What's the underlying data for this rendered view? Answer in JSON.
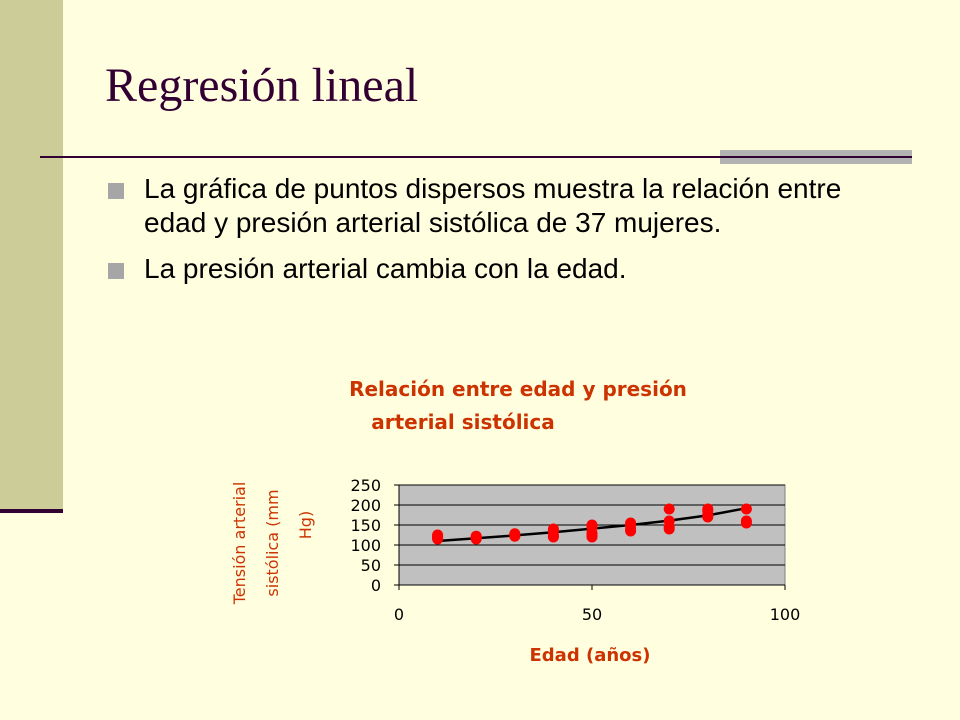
{
  "slide": {
    "title": "Regresión lineal",
    "bullets": [
      "La gráfica de puntos dispersos muestra la relación entre edad y presión arterial sistólica de 37 mujeres.",
      "La presión arterial cambia con la edad."
    ]
  },
  "colors": {
    "background": "#FFFFE0",
    "sidebar": "#CCCC99",
    "title": "#330033",
    "accent_gray": "#B2B2B2",
    "chart_text": "#CC3300",
    "points": "#FF0000",
    "plot_area": "#C0C0C0"
  },
  "chart_data": {
    "type": "scatter",
    "title": "Relación entre edad y presión arterial sistólica",
    "title_lines": [
      "Relación entre edad y presión",
      "arterial sistólica"
    ],
    "xlabel": "Edad (años)",
    "ylabel_lines": [
      "Tensión arterial",
      "sistólica (mm",
      "Hg)"
    ],
    "xlim": [
      0,
      100
    ],
    "ylim": [
      0,
      250
    ],
    "x_ticks": [
      0,
      50,
      100
    ],
    "y_ticks": [
      0,
      50,
      100,
      150,
      200,
      250
    ],
    "grid": true,
    "points": [
      [
        10,
        120
      ],
      [
        10,
        115
      ],
      [
        10,
        122
      ],
      [
        10,
        118
      ],
      [
        10,
        125
      ],
      [
        20,
        115
      ],
      [
        20,
        120
      ],
      [
        20,
        118
      ],
      [
        20,
        122
      ],
      [
        30,
        125
      ],
      [
        30,
        122
      ],
      [
        30,
        128
      ],
      [
        40,
        120
      ],
      [
        40,
        125
      ],
      [
        40,
        140
      ],
      [
        40,
        135
      ],
      [
        40,
        122
      ],
      [
        50,
        120
      ],
      [
        50,
        130
      ],
      [
        50,
        150
      ],
      [
        50,
        145
      ],
      [
        50,
        125
      ],
      [
        60,
        135
      ],
      [
        60,
        140
      ],
      [
        60,
        155
      ],
      [
        60,
        150
      ],
      [
        70,
        140
      ],
      [
        70,
        145
      ],
      [
        70,
        190
      ],
      [
        70,
        160
      ],
      [
        80,
        170
      ],
      [
        80,
        175
      ],
      [
        80,
        185
      ],
      [
        80,
        190
      ],
      [
        90,
        155
      ],
      [
        90,
        160
      ],
      [
        90,
        190
      ]
    ],
    "trendline": [
      [
        10,
        110
      ],
      [
        20,
        117
      ],
      [
        30,
        124
      ],
      [
        40,
        132
      ],
      [
        50,
        141
      ],
      [
        60,
        150
      ],
      [
        70,
        161
      ],
      [
        80,
        174
      ],
      [
        90,
        192
      ]
    ]
  }
}
